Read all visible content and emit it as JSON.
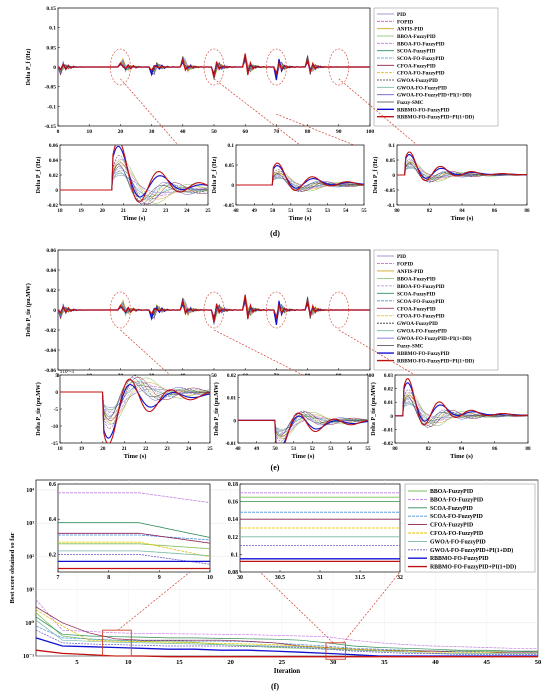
{
  "colors": {
    "PID": "#7B7BC8",
    "FOPID": "#C058C0",
    "ANFIS-PID": "#D4A020",
    "BBOA-FuzzyPID": "#7AC05A",
    "BBOA-FO-FuzzyPID": "#C080E0",
    "SCOA-FuzzyPID": "#2E8B57",
    "SCOA-FO-FuzzyPID": "#4A90D9",
    "CFOA-FuzzyPID": "#8B1A4A",
    "CFOA-FO-FuzzyPID": "#E0C000",
    "GWOA-FuzzyPID": "#303030",
    "GWOA-FO-FuzzyPID": "#76B8A0",
    "GWOA-FO-FuzzyPID+PI(1+DD)": "#6A5ACD",
    "Fuzzy-SMC": "#404040",
    "RBBMO-FO-FuzzyPID": "#1010D0",
    "RBBMO-FO-FuzzyPID+PI(1+DD)": "#C01010"
  },
  "panels": {
    "d_label": "(d)",
    "e_label": "(e)",
    "f_label": "(f)"
  },
  "chart_data": [
    {
      "id": "d-main",
      "type": "line",
      "ylabel": "Delta P_f (Hz)",
      "xlabel": "",
      "xlim": [
        0,
        100
      ],
      "ylim": [
        -0.15,
        0.15
      ],
      "xticks": [
        0,
        10,
        20,
        30,
        40,
        50,
        60,
        70,
        80,
        90,
        100
      ],
      "yticks": [
        0.15,
        0.1,
        0.05,
        0,
        -0.05,
        -0.1,
        -0.15
      ],
      "legend": [
        "PID",
        "FOPID",
        "ANFIS-PID",
        "BBOA-FuzzyPID",
        "BBOA-FO-FuzzyPID",
        "SCOA-FuzzyPID",
        "SCOA-FO-FuzzyPID",
        "CFOA-FuzzyPID",
        "CFOA-FO-FuzzyPID",
        "GWOA-FuzzyPID",
        "GWOA-FO-FuzzyPID",
        "GWOA-FO-FuzzyPID+PI(1+DD)",
        "Fuzzy-SMC",
        "RBBMO-FO-FuzzyPID",
        "RBBMO-FO-FuzzyPID+PI(1+DD)"
      ],
      "legend_position": "right"
    },
    {
      "id": "d-zoom1",
      "type": "line",
      "ylabel": "Delta P_f (Hz)",
      "xlabel": "Time (s)",
      "xlim": [
        18,
        25
      ],
      "ylim": [
        -0.02,
        0.06
      ],
      "xticks": [
        18,
        19,
        20,
        21,
        22,
        23,
        24,
        25
      ],
      "yticks": [
        0.06,
        0.04,
        0.02,
        0,
        -0.02
      ]
    },
    {
      "id": "d-zoom2",
      "type": "line",
      "ylabel": "Delta P_f (Hz)",
      "xlabel": "Time (s)",
      "xlim": [
        48,
        55
      ],
      "ylim": [
        -0.05,
        0.1
      ],
      "xticks": [
        48,
        49,
        50,
        51,
        52,
        53,
        54,
        55
      ],
      "yticks": [
        0.1,
        0.05,
        0,
        -0.05
      ]
    },
    {
      "id": "d-zoom3",
      "type": "line",
      "ylabel": "Delta P_f (Hz)",
      "xlabel": "Time (s)",
      "xlim": [
        80,
        88
      ],
      "ylim": [
        -0.1,
        0.1
      ],
      "xticks": [
        80,
        82,
        84,
        86,
        88
      ],
      "yticks": [
        0.1,
        0.05,
        0,
        -0.05,
        -0.1
      ]
    },
    {
      "id": "e-main",
      "type": "line",
      "ylabel": "Delta P_tie (pu.MW)",
      "xlabel": "",
      "xlim": [
        0,
        100
      ],
      "ylim": [
        -0.06,
        0.06
      ],
      "xticks": [
        0,
        10,
        20,
        30,
        40,
        50,
        60,
        70,
        80,
        90,
        100
      ],
      "yticks": [
        0.06,
        0.04,
        0.02,
        0,
        -0.02,
        -0.04,
        -0.06
      ],
      "legend": [
        "PID",
        "FOPID",
        "ANFIS-PID",
        "BBOA-FuzzyPID",
        "BBOA-FO-FuzzyPID",
        "SCOA-FuzzyPID",
        "SCOA-FO-FuzzyPID",
        "CFOA-FuzzyPID",
        "CFOA-FO-FuzzyPID",
        "GWOA-FuzzyPID",
        "GWOA-FO-FuzzyPID",
        "GWOA-FO-FuzzyPID+PI(1+DD)",
        "Fuzzy-SMC",
        "RBBMO-FO-FuzzyPID",
        "RBBMO-FO-FuzzyPID+PI(1+DD)"
      ],
      "legend_position": "right"
    },
    {
      "id": "e-zoom1",
      "type": "line",
      "ylabel": "Delta P_tie (pu.MW)",
      "xlabel": "Time (s)",
      "scale_note": "x10^-3",
      "xlim": [
        18,
        25
      ],
      "ylim": [
        -15,
        5
      ],
      "xticks": [
        18,
        19,
        20,
        21,
        22,
        23,
        24,
        25
      ],
      "yticks": [
        5,
        0,
        -5,
        -10,
        -15
      ]
    },
    {
      "id": "e-zoom2",
      "type": "line",
      "ylabel": "Delta P_tie (pu.MW)",
      "xlabel": "Time (s)",
      "xlim": [
        48,
        55
      ],
      "ylim": [
        -0.01,
        0.02
      ],
      "xticks": [
        48,
        49,
        50,
        51,
        52,
        53,
        54,
        55
      ],
      "yticks": [
        0.02,
        0.01,
        0,
        -0.01
      ]
    },
    {
      "id": "e-zoom3",
      "type": "line",
      "ylabel": "Delta P_tie (pu.MW)",
      "xlabel": "Time (s)",
      "xlim": [
        80,
        88
      ],
      "ylim": [
        -0.02,
        0.03
      ],
      "xticks": [
        80,
        82,
        84,
        86,
        88
      ],
      "yticks": [
        0.03,
        0.02,
        0.01,
        0,
        -0.01,
        -0.02
      ]
    },
    {
      "id": "f-main",
      "type": "line",
      "ylabel": "Best score obtained so far",
      "xlabel": "Iteration",
      "xlim": [
        1,
        50
      ],
      "yscale": "log",
      "xticks": [
        5,
        10,
        15,
        20,
        25,
        30,
        35,
        40,
        45,
        50
      ],
      "ytick_labels": [
        "10^4",
        "10^3",
        "10^2",
        "10^1",
        "10^0",
        "10^-1"
      ],
      "legend": [
        "BBOA-FuzzyPID",
        "BBOA-FO-FuzzyPID",
        "SCOA-FuzzyPID",
        "SCOA-FO-FuzzyPID",
        "CFOA-FuzzyPID",
        "CFOA-FO-FuzzyPID",
        "GWOA-FO-FuzzyPID",
        "GWOA-FO-FuzzyPID+PI(1+DD)",
        "RBBMO-FO-FuzzyPID",
        "RBBMO-FO-FuzzyPID+PI(1+DD)"
      ],
      "legend_position": "right",
      "series": [
        {
          "name": "BBOA-FuzzyPID",
          "values": [
            2.0,
            0.4,
            0.32,
            0.3,
            0.28,
            0.27,
            0.26,
            0.22,
            0.2,
            0.18,
            0.17,
            0.16,
            0.15,
            0.15,
            0.15,
            0.14,
            0.14,
            0.14,
            0.14,
            0.13
          ]
        },
        {
          "name": "BBOA-FO-FuzzyPID",
          "values": [
            5.0,
            0.6,
            0.55,
            0.5,
            0.48,
            0.47,
            0.46,
            0.45,
            0.44,
            0.42,
            0.4,
            0.38,
            0.3,
            0.25,
            0.22,
            0.2,
            0.19,
            0.18,
            0.17,
            0.17
          ]
        },
        {
          "name": "SCOA-FuzzyPID",
          "values": [
            1.5,
            0.45,
            0.4,
            0.38,
            0.37,
            0.35,
            0.35,
            0.34,
            0.33,
            0.32,
            0.3,
            0.25,
            0.2,
            0.18,
            0.17,
            0.16,
            0.15,
            0.15,
            0.14,
            0.14
          ]
        },
        {
          "name": "SCOA-FO-FuzzyPID",
          "values": [
            0.8,
            0.35,
            0.33,
            0.3,
            0.29,
            0.29,
            0.28,
            0.28,
            0.27,
            0.25,
            0.22,
            0.2,
            0.17,
            0.16,
            0.15,
            0.14,
            0.14,
            0.13,
            0.13,
            0.13
          ]
        },
        {
          "name": "CFOA-FuzzyPID",
          "values": [
            3.0,
            1.0,
            0.5,
            0.33,
            0.3,
            0.3,
            0.3,
            0.3,
            0.28,
            0.25,
            0.2,
            0.18,
            0.16,
            0.15,
            0.14,
            0.14,
            0.13,
            0.13,
            0.13,
            0.13
          ]
        },
        {
          "name": "CFOA-FO-FuzzyPID",
          "values": [
            2.5,
            0.8,
            0.3,
            0.28,
            0.27,
            0.26,
            0.25,
            0.24,
            0.23,
            0.22,
            0.2,
            0.18,
            0.16,
            0.15,
            0.14,
            0.13,
            0.13,
            0.13,
            0.12,
            0.12
          ]
        },
        {
          "name": "GWOA-FO-FuzzyPID",
          "values": [
            1.2,
            0.3,
            0.28,
            0.26,
            0.25,
            0.24,
            0.23,
            0.22,
            0.21,
            0.2,
            0.19,
            0.17,
            0.15,
            0.14,
            0.13,
            0.12,
            0.12,
            0.12,
            0.12,
            0.12
          ]
        },
        {
          "name": "GWOA-FO-FuzzyPID+PI(1+DD)",
          "values": [
            0.6,
            0.25,
            0.23,
            0.22,
            0.21,
            0.2,
            0.2,
            0.2,
            0.19,
            0.19,
            0.18,
            0.16,
            0.14,
            0.13,
            0.12,
            0.12,
            0.11,
            0.11,
            0.11,
            0.11
          ]
        },
        {
          "name": "RBBMO-FO-FuzzyPID",
          "values": [
            0.35,
            0.2,
            0.19,
            0.18,
            0.17,
            0.16,
            0.16,
            0.15,
            0.15,
            0.14,
            0.13,
            0.12,
            0.11,
            0.1,
            0.1,
            0.1,
            0.1,
            0.1,
            0.1,
            0.1
          ]
        },
        {
          "name": "RBBMO-FO-FuzzyPID+PI(1+DD)",
          "values": [
            0.15,
            0.12,
            0.11,
            0.1,
            0.1,
            0.095,
            0.095,
            0.095,
            0.095,
            0.095,
            0.095,
            0.095,
            0.095,
            0.095,
            0.095,
            0.095,
            0.095,
            0.095,
            0.095,
            0.095
          ]
        }
      ]
    },
    {
      "id": "f-inset1",
      "type": "line",
      "xlim": [
        7,
        10
      ],
      "ylim": [
        0.1,
        0.6
      ],
      "xticks": [
        7,
        8,
        9,
        10
      ],
      "yticks": [
        0.6,
        0.4,
        0.2
      ]
    },
    {
      "id": "f-inset2",
      "type": "line",
      "xlim": [
        30,
        32
      ],
      "ylim": [
        0.08,
        0.18
      ],
      "xticks": [
        30,
        30.5,
        31,
        31.5,
        32
      ],
      "yticks": [
        0.18,
        0.16,
        0.14,
        0.12,
        0.1,
        0.08
      ]
    }
  ]
}
